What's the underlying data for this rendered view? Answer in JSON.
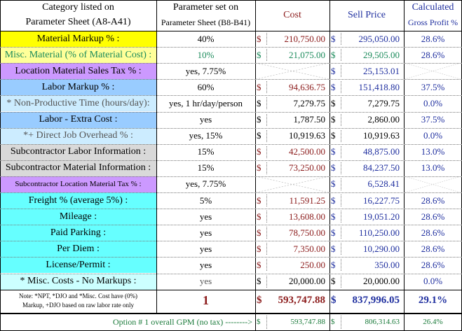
{
  "header": {
    "category": "Category listed on",
    "category2": "Parameter Sheet (A8-A41)",
    "param": "Parameter set on",
    "param2": "Parameter Sheet (B8-B41)",
    "cost": "Cost",
    "sell": "Sell Price",
    "gp": "Calculated",
    "gp2": "Gross Profit %"
  },
  "rows": [
    {
      "label": "Material Markup % :",
      "bg": "#ffff00",
      "labelColor": "#000",
      "param": "40%",
      "cs": "$",
      "cost": "210,750.00",
      "ss": "$",
      "sell": "295,050.00",
      "gp": "28.6%"
    },
    {
      "label": "Misc. Material (% of Material Cost) :",
      "bg": "#ffff99",
      "labelColor": "#1a8a5a",
      "param": "10%",
      "paramColor": "#1a8a5a",
      "cs": "$",
      "cost": "21,075.00",
      "costColor": "#1a8a5a",
      "ss": "$",
      "sell": "29,505.00",
      "sellColor": "#1a8a5a",
      "gp": "28.6%"
    },
    {
      "label": "Location Material Sales Tax % :",
      "bg": "#cc99ff",
      "labelColor": "#000",
      "param": "yes, 7.75%",
      "cs": "",
      "cost": "",
      "ss": "$",
      "sell": "25,153.01",
      "gp": "",
      "costCross": true
    },
    {
      "label": "Labor Markup % :",
      "bg": "#99ccff",
      "labelColor": "#000",
      "param": "60%",
      "cs": "$",
      "cost": "94,636.75",
      "ss": "$",
      "sell": "151,418.80",
      "gp": "37.5%"
    },
    {
      "label": "* Non-Productive Time (hours/day):",
      "bg": "#ccecff",
      "labelColor": "#555",
      "param": "yes, 1 hr/day/person",
      "cs": "$",
      "cost": "7,279.75",
      "costColor": "#000",
      "ss": "$",
      "sell": "7,279.75",
      "sellColor": "#000",
      "gp": "0.0%"
    },
    {
      "label": "Labor - Extra Cost :",
      "bg": "#99ccff",
      "labelColor": "#000",
      "param": "yes",
      "cs": "$",
      "cost": "1,787.50",
      "costColor": "#000",
      "ss": "$",
      "sell": "2,860.00",
      "sellColor": "#000",
      "gp": "37.5%"
    },
    {
      "label": "*+ Direct Job Overhead % :",
      "bg": "#ccecff",
      "labelColor": "#555",
      "param": "yes, 15%",
      "cs": "$",
      "cost": "10,919.63",
      "costColor": "#000",
      "ss": "$",
      "sell": "10,919.63",
      "sellColor": "#000",
      "gp": "0.0%"
    },
    {
      "label": "Subcontractor Labor Information :",
      "bg": "#d9d9d9",
      "labelColor": "#000",
      "param": "15%",
      "cs": "$",
      "cost": "42,500.00",
      "ss": "$",
      "sell": "48,875.00",
      "gp": "13.0%"
    },
    {
      "label": "Subcontractor Material Information :",
      "bg": "#d9d9d9",
      "labelColor": "#000",
      "param": "15%",
      "cs": "$",
      "cost": "73,250.00",
      "ss": "$",
      "sell": "84,237.50",
      "gp": "13.0%"
    },
    {
      "label": "Subcontractor Location Material Tax % :",
      "bg": "#cc99ff",
      "labelColor": "#000",
      "small": true,
      "param": "yes, 7.75%",
      "cs": "",
      "cost": "",
      "ss": "$",
      "sell": "6,528.41",
      "gp": "",
      "costCross": true
    },
    {
      "label": "Freight % (average 5%) :",
      "bg": "#66ffff",
      "labelColor": "#000",
      "param": "5%",
      "cs": "$",
      "cost": "11,591.25",
      "ss": "$",
      "sell": "16,227.75",
      "gp": "28.6%"
    },
    {
      "label": "Mileage :",
      "bg": "#66ffff",
      "labelColor": "#000",
      "param": "yes",
      "cs": "$",
      "cost": "13,608.00",
      "ss": "$",
      "sell": "19,051.20",
      "gp": "28.6%"
    },
    {
      "label": "Paid Parking :",
      "bg": "#66ffff",
      "labelColor": "#000",
      "param": "yes",
      "cs": "$",
      "cost": "78,750.00",
      "ss": "$",
      "sell": "110,250.00",
      "gp": "28.6%"
    },
    {
      "label": "Per Diem :",
      "bg": "#66ffff",
      "labelColor": "#000",
      "param": "yes",
      "cs": "$",
      "cost": "7,350.00",
      "ss": "$",
      "sell": "10,290.00",
      "gp": "28.6%"
    },
    {
      "label": "License/Permit :",
      "bg": "#66ffff",
      "labelColor": "#000",
      "param": "yes",
      "cs": "$",
      "cost": "250.00",
      "ss": "$",
      "sell": "350.00",
      "gp": "28.6%"
    },
    {
      "label": "* Misc. Costs - No Markups :",
      "bg": "#ccffff",
      "labelColor": "#000",
      "param": "yes",
      "paramColor": "#555",
      "cs": "$",
      "cost": "20,000.00",
      "costColor": "#000",
      "ss": "$",
      "sell": "20,000.00",
      "sellColor": "#000",
      "gp": "0.0%"
    }
  ],
  "total": {
    "note1": "Note: *NPT, *DJO and *Misc. Cost have (0%)",
    "note2": "Markup, +DJO based on raw labor rate only",
    "option": "1",
    "cs": "$",
    "cost": "593,747.88",
    "ss": "$",
    "sell": "837,996.05",
    "gp": "29.1%"
  },
  "footer": {
    "label": "Option # 1 overall GPM (no tax) -------->",
    "cs": "$",
    "cost": "593,747.88",
    "ss": "$",
    "sell": "806,314.63",
    "gp": "26.4%"
  }
}
